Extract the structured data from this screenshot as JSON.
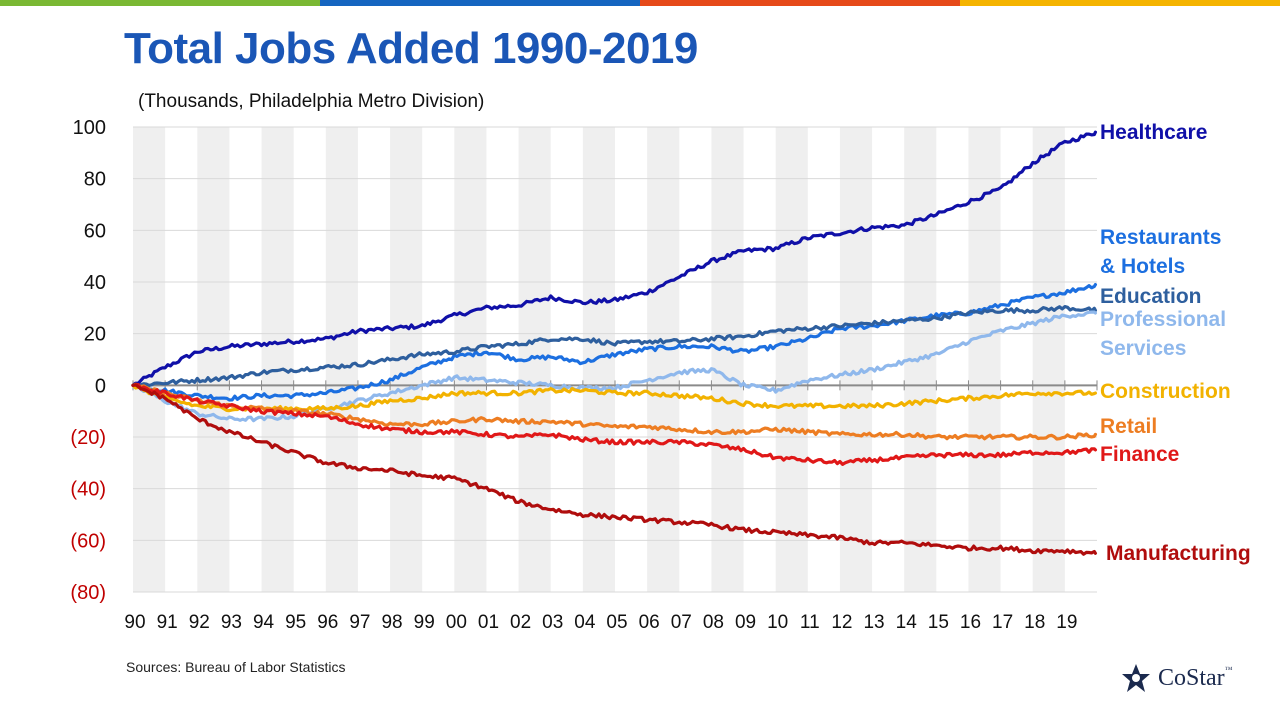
{
  "colors": {
    "topbar": [
      "#7ab833",
      "#1565c0",
      "#e64a19",
      "#f5b400"
    ],
    "title": "#1a56b6",
    "band": "#efefef",
    "negative_tick": "#c00000"
  },
  "page": {
    "title": "Total Jobs Added 1990-2019",
    "subtitle": "(Thousands, Philadelphia  Metro Division)",
    "source": "Sources: Bureau of Labor Statistics",
    "logo_text": "CoStar",
    "logo_tm": "™"
  },
  "chart_data": {
    "type": "line",
    "title": "Total Jobs Added 1990-2019",
    "subtitle": "(Thousands, Philadelphia  Metro Division)",
    "ylim": [
      -80,
      100
    ],
    "yticks": [
      100,
      80,
      60,
      40,
      20,
      0,
      -20,
      -40,
      -60,
      -80
    ],
    "ytick_labels": [
      "100",
      "80",
      "60",
      "40",
      "20",
      "0",
      "(20)",
      "(40)",
      "(60)",
      "(80)"
    ],
    "xlim": [
      1990,
      2020
    ],
    "x_tick_labels": [
      "90",
      "91",
      "92",
      "93",
      "94",
      "95",
      "96",
      "97",
      "98",
      "99",
      "00",
      "01",
      "02",
      "03",
      "04",
      "05",
      "06",
      "07",
      "08",
      "09",
      "10",
      "11",
      "12",
      "13",
      "14",
      "15",
      "16",
      "17",
      "18",
      "19"
    ],
    "grid": "horizontal",
    "alternating_year_bands": true,
    "x": [
      1990,
      1991,
      1992,
      1993,
      1994,
      1995,
      1996,
      1997,
      1998,
      1999,
      2000,
      2001,
      2002,
      2003,
      2004,
      2005,
      2006,
      2007,
      2008,
      2009,
      2010,
      2011,
      2012,
      2013,
      2014,
      2015,
      2016,
      2017,
      2018,
      2019,
      2020
    ],
    "series": [
      {
        "name": "Healthcare",
        "label_lines": [
          "Healthcare"
        ],
        "color": "#1010a8",
        "values": [
          0,
          7,
          13,
          15,
          16,
          17,
          18,
          21,
          22,
          23,
          27,
          30,
          31,
          34,
          32,
          33,
          36,
          42,
          48,
          52,
          53,
          57,
          59,
          61,
          62,
          66,
          71,
          76,
          86,
          94,
          98
        ]
      },
      {
        "name": "Restaurants & Hotels",
        "label_lines": [
          "Restaurants",
          "& Hotels"
        ],
        "color": "#1c6fe0",
        "values": [
          0,
          -2,
          -4,
          -5,
          -4,
          -4,
          -3,
          -1,
          2,
          7,
          11,
          13,
          10,
          11,
          9,
          12,
          14,
          15,
          15,
          13,
          15,
          18,
          22,
          23,
          25,
          27,
          28,
          31,
          34,
          36,
          39
        ]
      },
      {
        "name": "Education",
        "label_lines": [
          "Education"
        ],
        "color": "#2e5f9e",
        "values": [
          0,
          1,
          2,
          3,
          5,
          6,
          7,
          8,
          10,
          12,
          13,
          15,
          16,
          18,
          18,
          16,
          17,
          17,
          18,
          19,
          21,
          22,
          23,
          24,
          25,
          26,
          28,
          29,
          29,
          30,
          29
        ]
      },
      {
        "name": "Professional Services",
        "label_lines": [
          "Professional",
          "Services"
        ],
        "color": "#8fb8ec",
        "values": [
          0,
          -6,
          -11,
          -13,
          -13,
          -12,
          -9,
          -6,
          -3,
          0,
          3,
          2,
          1,
          0,
          -1,
          -1,
          2,
          5,
          6,
          0,
          -2,
          2,
          4,
          6,
          9,
          12,
          17,
          21,
          24,
          27,
          28
        ]
      },
      {
        "name": "Construction",
        "label_lines": [
          "Construction"
        ],
        "color": "#f2b200",
        "values": [
          0,
          -5,
          -8,
          -9,
          -9,
          -9,
          -9,
          -8,
          -6,
          -5,
          -3,
          -3,
          -3,
          -2,
          -2,
          -3,
          -3,
          -4,
          -5,
          -7,
          -8,
          -8,
          -8,
          -8,
          -7,
          -6,
          -5,
          -4,
          -3,
          -3,
          -3
        ]
      },
      {
        "name": "Retail",
        "label_lines": [
          "Retail"
        ],
        "color": "#ed7d22",
        "values": [
          0,
          -3,
          -6,
          -8,
          -9,
          -10,
          -11,
          -13,
          -15,
          -15,
          -14,
          -13,
          -14,
          -14,
          -15,
          -16,
          -16,
          -17,
          -18,
          -18,
          -17,
          -18,
          -19,
          -19,
          -19,
          -20,
          -20,
          -20,
          -20,
          -20,
          -19
        ]
      },
      {
        "name": "Finance",
        "label_lines": [
          "Finance"
        ],
        "color": "#e01818",
        "values": [
          0,
          -3,
          -6,
          -8,
          -10,
          -11,
          -12,
          -15,
          -17,
          -18,
          -18,
          -19,
          -20,
          -19,
          -21,
          -22,
          -22,
          -22,
          -23,
          -25,
          -28,
          -29,
          -30,
          -29,
          -28,
          -27,
          -27,
          -27,
          -26,
          -26,
          -25
        ]
      },
      {
        "name": "Manufacturing",
        "label_lines": [
          "Manufacturing"
        ],
        "color": "#b00d0d",
        "values": [
          0,
          -5,
          -13,
          -18,
          -22,
          -26,
          -30,
          -32,
          -33,
          -35,
          -36,
          -40,
          -45,
          -48,
          -50,
          -51,
          -52,
          -53,
          -54,
          -56,
          -57,
          -58,
          -59,
          -61,
          -61,
          -62,
          -63,
          -63,
          -64,
          -64,
          -65
        ]
      }
    ]
  }
}
